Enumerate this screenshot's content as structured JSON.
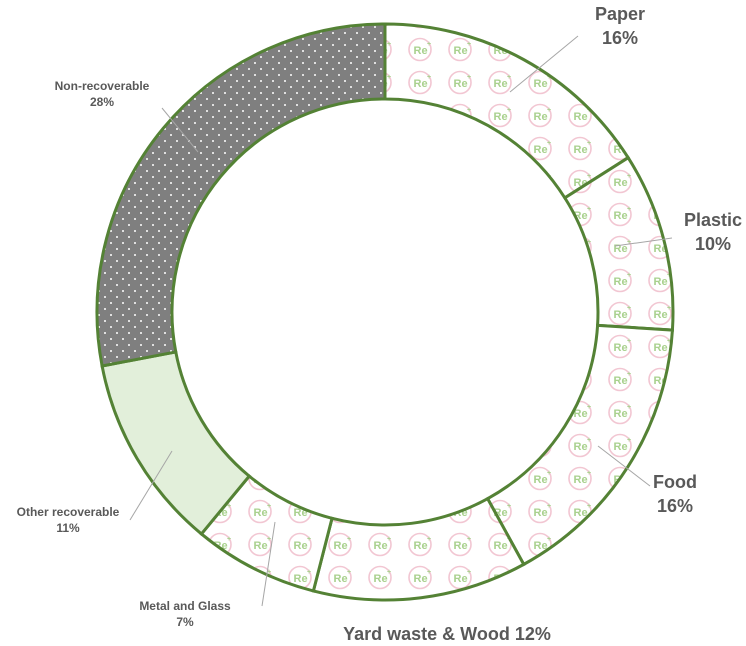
{
  "chart_data": {
    "type": "pie",
    "variant": "donut",
    "categories": [
      "Paper",
      "Plastic",
      "Food",
      "Yard waste & Wood",
      "Metal and Glass",
      "Other recoverable",
      "Non-recoverable"
    ],
    "values": [
      16,
      10,
      16,
      12,
      7,
      11,
      28
    ],
    "value_labels": [
      "16%",
      "10%",
      "16%",
      "12%",
      "7%",
      "11%",
      "28%"
    ],
    "slice_fills": [
      "re-pattern",
      "re-pattern",
      "re-pattern",
      "re-pattern",
      "re-pattern",
      "light-green",
      "gray-dotted"
    ],
    "colors": {
      "outline": "#548235",
      "light_green": "#e2efda",
      "gray": "#7f7f7f",
      "pattern_pink": "#f2c6d2",
      "pattern_green": "#a9d18e",
      "label_text": "#595959",
      "leader_line": "#a6a6a6"
    },
    "legend": "none",
    "title": ""
  }
}
